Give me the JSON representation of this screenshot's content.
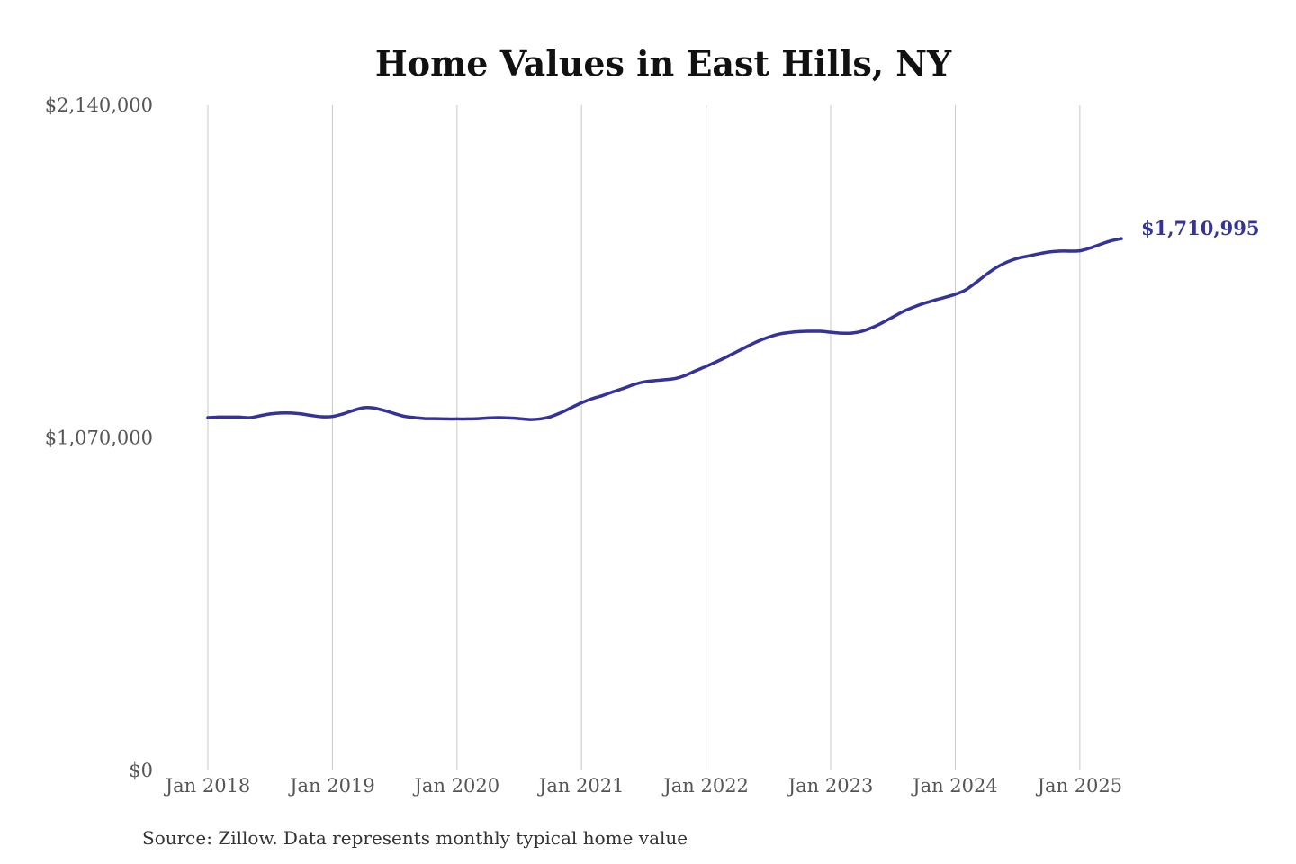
{
  "chart_data": {
    "type": "line",
    "title": "Home Values in East Hills, NY",
    "xlim": [
      "2018-01",
      "2025-05"
    ],
    "ylim": [
      0,
      2140000
    ],
    "grid": {
      "x": true,
      "y": false
    },
    "x_ticks": [
      {
        "value": "2018-01",
        "label": "Jan 2018"
      },
      {
        "value": "2019-01",
        "label": "Jan 2019"
      },
      {
        "value": "2020-01",
        "label": "Jan 2020"
      },
      {
        "value": "2021-01",
        "label": "Jan 2021"
      },
      {
        "value": "2022-01",
        "label": "Jan 2022"
      },
      {
        "value": "2023-01",
        "label": "Jan 2023"
      },
      {
        "value": "2024-01",
        "label": "Jan 2024"
      },
      {
        "value": "2025-01",
        "label": "Jan 2025"
      }
    ],
    "y_ticks": [
      {
        "value": 0,
        "label": "$0"
      },
      {
        "value": 1070000,
        "label": "$1,070,000"
      },
      {
        "value": 2140000,
        "label": "$2,140,000"
      }
    ],
    "x": [
      "2018-01",
      "2018-02",
      "2018-03",
      "2018-04",
      "2018-05",
      "2018-06",
      "2018-07",
      "2018-08",
      "2018-09",
      "2018-10",
      "2018-11",
      "2018-12",
      "2019-01",
      "2019-02",
      "2019-03",
      "2019-04",
      "2019-05",
      "2019-06",
      "2019-07",
      "2019-08",
      "2019-09",
      "2019-10",
      "2019-11",
      "2019-12",
      "2020-01",
      "2020-02",
      "2020-03",
      "2020-04",
      "2020-05",
      "2020-06",
      "2020-07",
      "2020-08",
      "2020-09",
      "2020-10",
      "2020-11",
      "2020-12",
      "2021-01",
      "2021-02",
      "2021-03",
      "2021-04",
      "2021-05",
      "2021-06",
      "2021-07",
      "2021-08",
      "2021-09",
      "2021-10",
      "2021-11",
      "2021-12",
      "2022-01",
      "2022-02",
      "2022-03",
      "2022-04",
      "2022-05",
      "2022-06",
      "2022-07",
      "2022-08",
      "2022-09",
      "2022-10",
      "2022-11",
      "2022-12",
      "2023-01",
      "2023-02",
      "2023-03",
      "2023-04",
      "2023-05",
      "2023-06",
      "2023-07",
      "2023-08",
      "2023-09",
      "2023-10",
      "2023-11",
      "2023-12",
      "2024-01",
      "2024-02",
      "2024-03",
      "2024-04",
      "2024-05",
      "2024-06",
      "2024-07",
      "2024-08",
      "2024-09",
      "2024-10",
      "2024-11",
      "2024-12",
      "2025-01",
      "2025-02",
      "2025-03",
      "2025-04",
      "2025-05"
    ],
    "series": [
      {
        "color": "#35329a",
        "values": [
          1135000,
          1137000,
          1137000,
          1137000,
          1135000,
          1141000,
          1147000,
          1150000,
          1150000,
          1147000,
          1142000,
          1138000,
          1139000,
          1147000,
          1158000,
          1167000,
          1166000,
          1158000,
          1148000,
          1139000,
          1135000,
          1132000,
          1132000,
          1131000,
          1131000,
          1131000,
          1132000,
          1134000,
          1135000,
          1134000,
          1132000,
          1129000,
          1131000,
          1138000,
          1151000,
          1167000,
          1183000,
          1196000,
          1206000,
          1218000,
          1229000,
          1241000,
          1250000,
          1254000,
          1257000,
          1261000,
          1271000,
          1286000,
          1300000,
          1315000,
          1331000,
          1348000,
          1365000,
          1381000,
          1394000,
          1404000,
          1409000,
          1412000,
          1413000,
          1413000,
          1410000,
          1407000,
          1407000,
          1413000,
          1425000,
          1441000,
          1459000,
          1477000,
          1491000,
          1503000,
          1513000,
          1522000,
          1532000,
          1546000,
          1570000,
          1596000,
          1619000,
          1636000,
          1648000,
          1655000,
          1662000,
          1668000,
          1671000,
          1671000,
          1672000,
          1681000,
          1693000,
          1704000,
          1710995
        ]
      }
    ],
    "end_label": "$1,710,995",
    "source": "Source: Zillow. Data represents monthly typical home value"
  }
}
